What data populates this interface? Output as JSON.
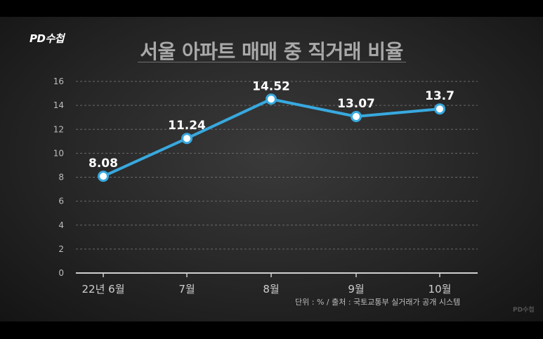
{
  "logo": "PD수첩",
  "logo_small": "PD수첩",
  "title": "서울 아파트 매매 중 직거래 비율",
  "source": "단위 : % / 출처 : 국토교통부 실거래가 공개 시스템",
  "chart_data": {
    "type": "line",
    "title": "서울 아파트 매매 중 직거래 비율",
    "xlabel": "",
    "ylabel": "",
    "categories": [
      "22년 6월",
      "7월",
      "8월",
      "9월",
      "10월"
    ],
    "series": [
      {
        "values": [
          8.08,
          11.24,
          14.52,
          13.07,
          13.7
        ]
      }
    ],
    "data_labels": [
      "8.08",
      "11.24",
      "14.52",
      "13.07",
      "13.7"
    ],
    "yticks": [
      "0",
      "2",
      "4",
      "6",
      "8",
      "10",
      "12",
      "14",
      "16"
    ],
    "ylim": [
      0,
      16
    ],
    "grid": true,
    "line_color": "#38a9df"
  }
}
